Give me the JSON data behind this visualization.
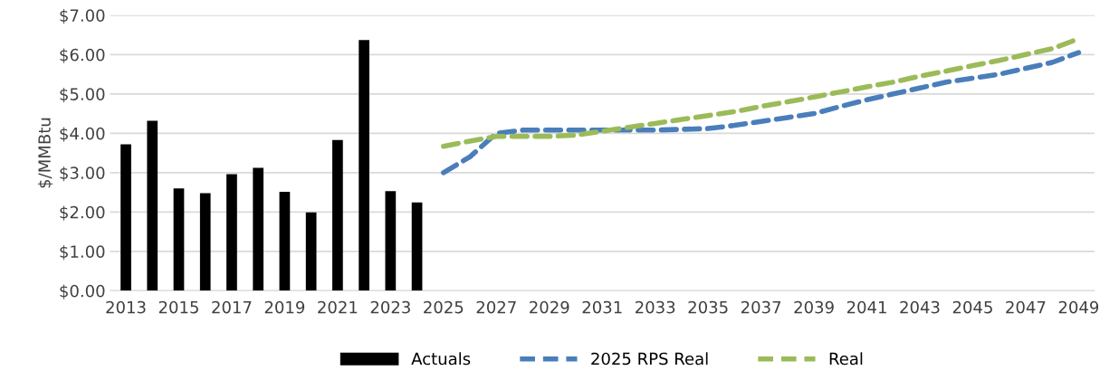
{
  "chart_data": {
    "type": "bar",
    "ylabel": "$/MMBtu",
    "categories": [
      "2013",
      null,
      "2015",
      null,
      "2017",
      null,
      "2019",
      null,
      "2021",
      null,
      "2023",
      null,
      "2025",
      null,
      "2027",
      null,
      "2029",
      null,
      "2031",
      null,
      "2033",
      null,
      "2035",
      null,
      "2037",
      null,
      "2039",
      null,
      "2041",
      null,
      "2043",
      null,
      "2045",
      null,
      "2047",
      null,
      "2049"
    ],
    "series": [
      {
        "name": "Actuals",
        "color": "#000000",
        "values": [
          3.72,
          4.32,
          2.6,
          2.48,
          2.96,
          3.12,
          2.51,
          1.99,
          3.83,
          6.37,
          2.53,
          2.24,
          null,
          null,
          null,
          null,
          null,
          null,
          null,
          null,
          null,
          null,
          null,
          null,
          null,
          null,
          null,
          null,
          null,
          null,
          null,
          null,
          null,
          null,
          null,
          null,
          null
        ]
      },
      {
        "name": "2025 RPS Real",
        "type": "line",
        "line_style": "dashed",
        "color": "#4a7ebb",
        "values": [
          null,
          null,
          null,
          null,
          null,
          null,
          null,
          null,
          null,
          null,
          null,
          null,
          3.0,
          3.4,
          4.0,
          4.08,
          4.08,
          4.08,
          4.08,
          4.08,
          4.08,
          4.1,
          4.12,
          4.2,
          4.3,
          4.4,
          4.5,
          4.68,
          4.85,
          5.0,
          5.15,
          5.3,
          5.4,
          5.5,
          5.65,
          5.8,
          6.05
        ]
      },
      {
        "name": "Real",
        "type": "line",
        "line_style": "dashed",
        "color": "#9bbb59",
        "values": [
          null,
          null,
          null,
          null,
          null,
          null,
          null,
          null,
          null,
          null,
          null,
          null,
          3.67,
          3.8,
          3.92,
          3.92,
          3.92,
          3.95,
          4.05,
          4.15,
          4.25,
          4.35,
          4.45,
          4.55,
          4.68,
          4.8,
          4.92,
          5.05,
          5.18,
          5.3,
          5.45,
          5.58,
          5.72,
          5.85,
          6.0,
          6.15,
          6.4
        ]
      }
    ],
    "ylim": [
      0,
      7
    ],
    "yticks": [
      {
        "value": 0,
        "label": "$0.00"
      },
      {
        "value": 1,
        "label": "$1.00"
      },
      {
        "value": 2,
        "label": "$2.00"
      },
      {
        "value": 3,
        "label": "$3.00"
      },
      {
        "value": 4,
        "label": "$4.00"
      },
      {
        "value": 5,
        "label": "$5.00"
      },
      {
        "value": 6,
        "label": "$6.00"
      },
      {
        "value": 7,
        "label": "$7.00"
      }
    ],
    "grid": "y",
    "legend": "bottom"
  }
}
